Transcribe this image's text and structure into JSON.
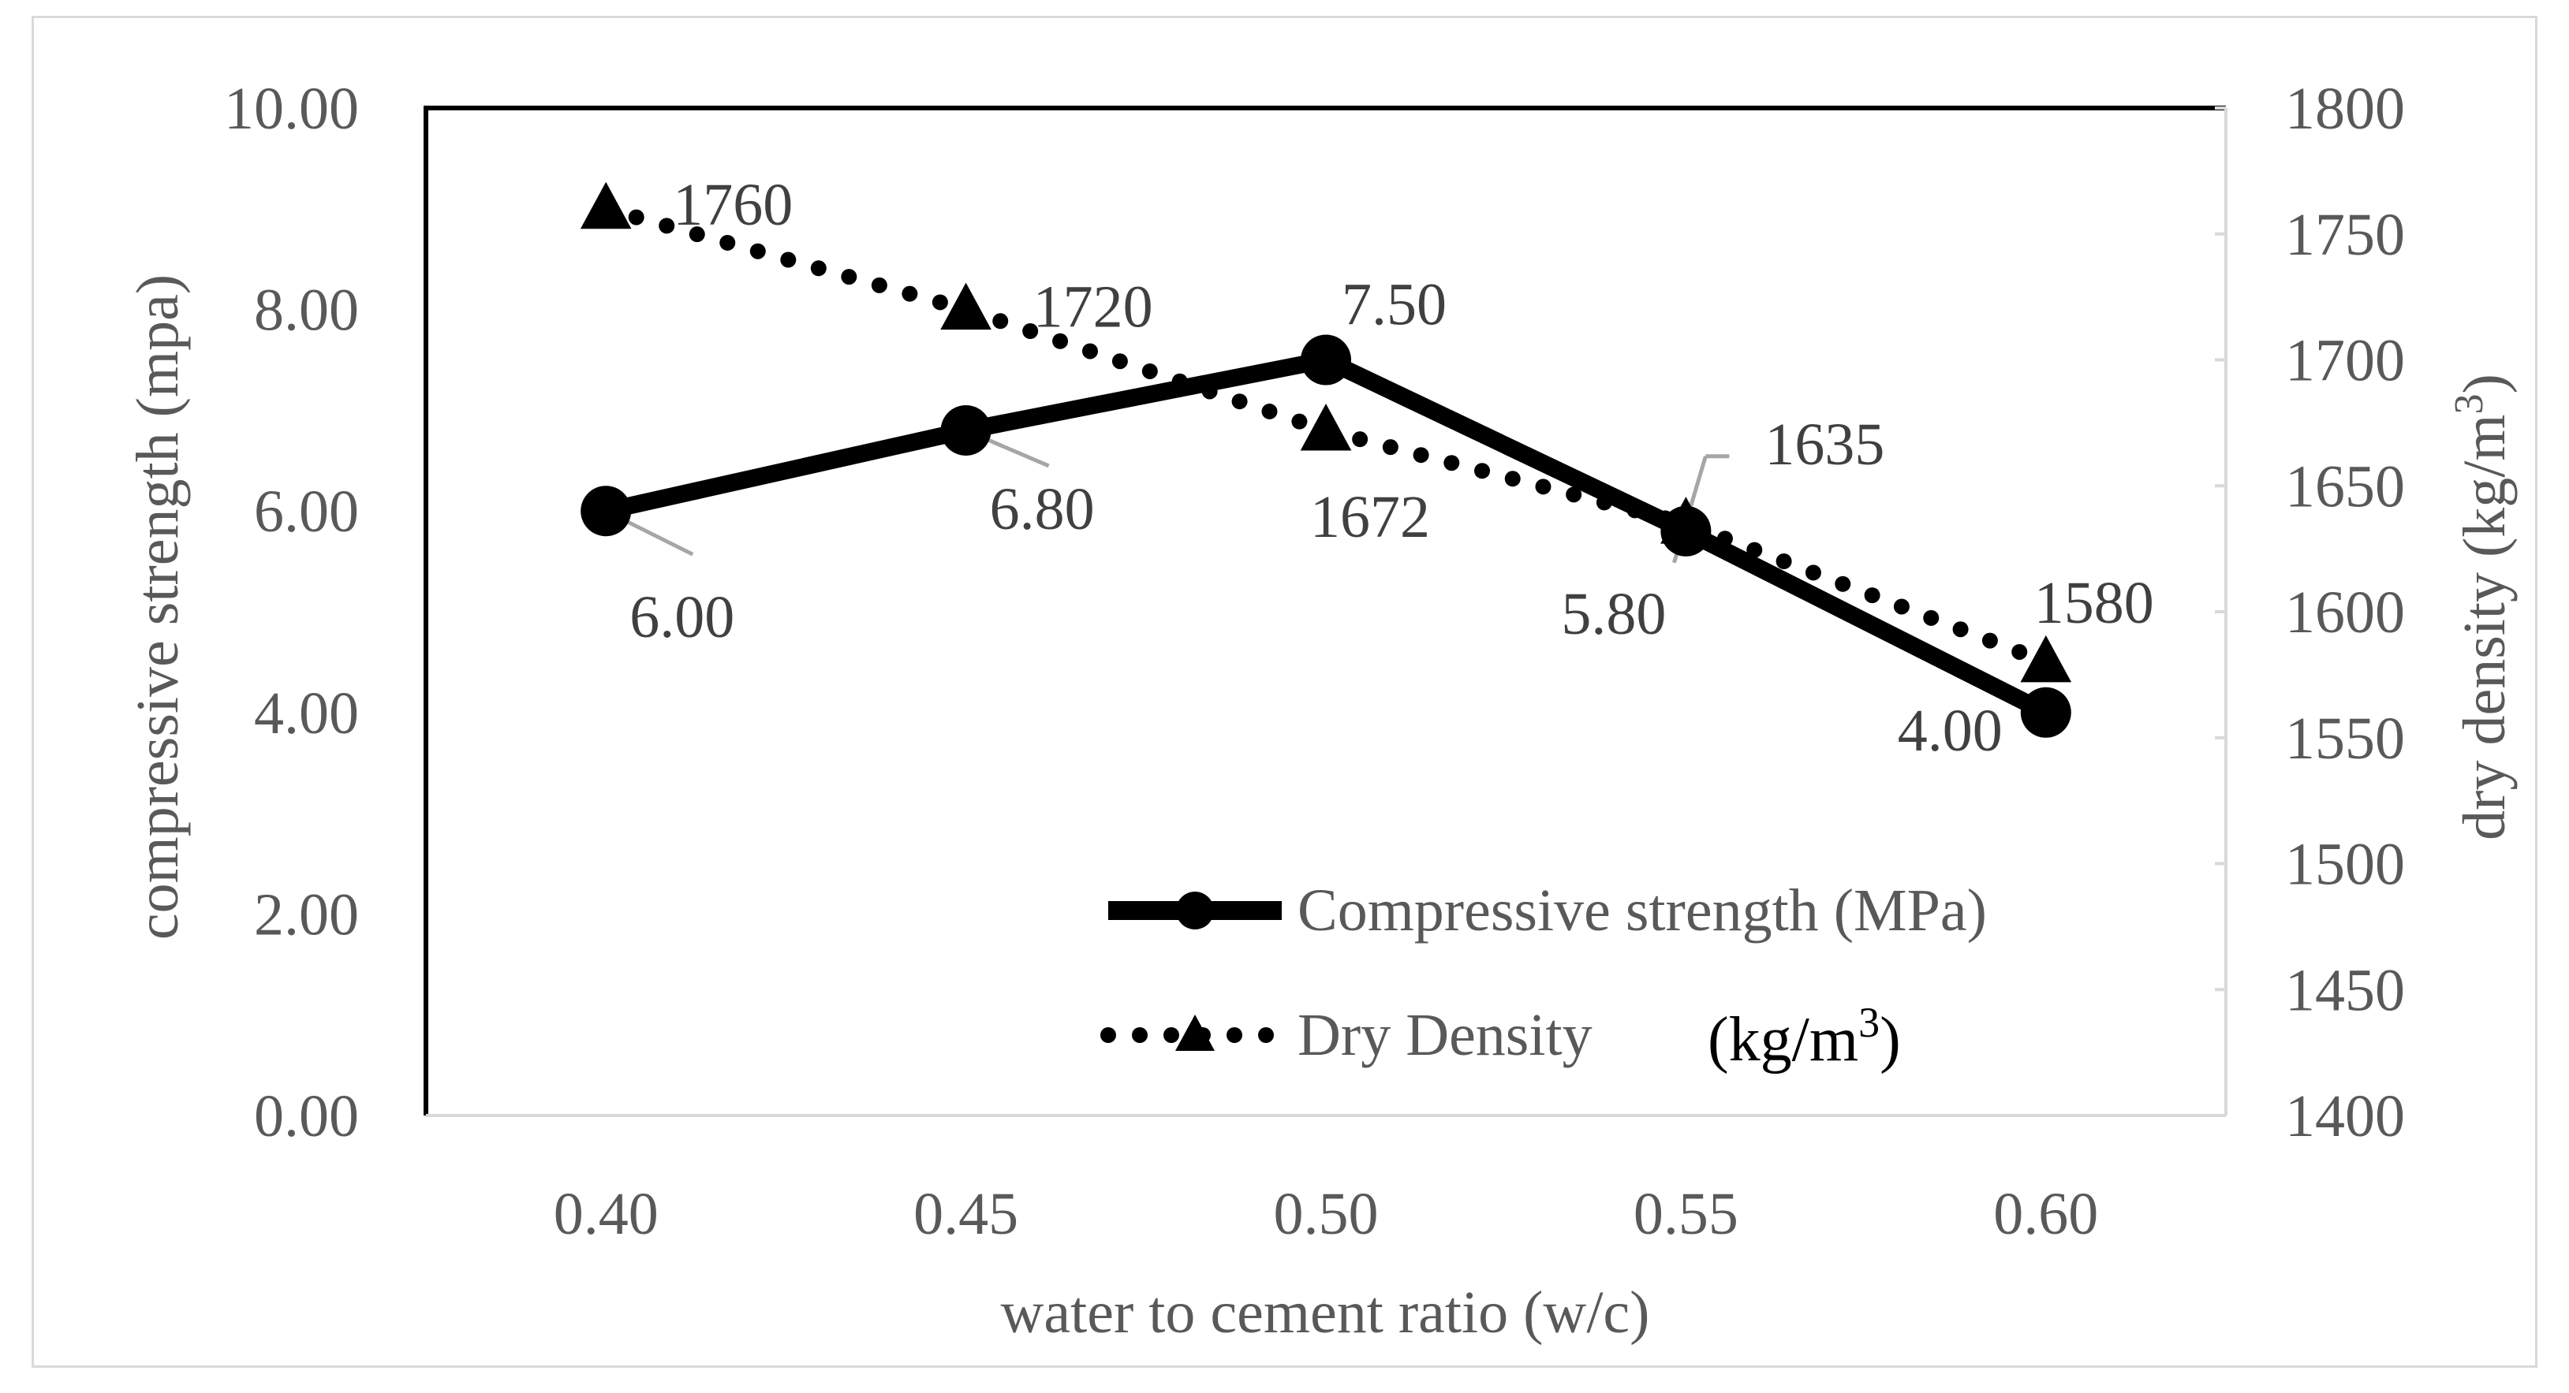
{
  "chart_data": {
    "type": "line",
    "title": "",
    "xlabel": "water to cement ratio (w/c)",
    "ylabel_left": "compressive strength (mpa)",
    "ylabel_right": "dry density (kg/m³)",
    "ylabel_right_main": "dry density (kg/m",
    "ylabel_right_sup": "3",
    "ylabel_right_end": ")",
    "categories": [
      "0.40",
      "0.45",
      "0.50",
      "0.55",
      "0.60"
    ],
    "y_left": {
      "min": 0,
      "max": 10,
      "step": 2,
      "ticks": [
        "0.00",
        "2.00",
        "4.00",
        "6.00",
        "8.00",
        "10.00"
      ]
    },
    "y_right": {
      "min": 1400,
      "max": 1800,
      "step": 50,
      "ticks": [
        "1400",
        "1450",
        "1500",
        "1550",
        "1600",
        "1650",
        "1700",
        "1750",
        "1800"
      ]
    },
    "series": [
      {
        "name": "Compressive strength (MPa)",
        "axis": "left",
        "style": "solid",
        "marker": "circle",
        "values": [
          6.0,
          6.8,
          7.5,
          5.8,
          4.0
        ],
        "labels": [
          "6.00",
          "6.80",
          "7.50",
          "5.80",
          "4.00"
        ]
      },
      {
        "name": "Dry Density",
        "axis": "right",
        "style": "dotted",
        "marker": "triangle",
        "values": [
          1760,
          1720,
          1672,
          1635,
          1580
        ],
        "labels": [
          "1760",
          "1720",
          "1672",
          "1635",
          "1580"
        ]
      }
    ],
    "legend": {
      "position": "bottom-right",
      "unit_main": "(kg/m",
      "unit_sup": "3",
      "unit_end": ")"
    },
    "colors": {
      "series": "#000000",
      "text": "#595959",
      "leader": "#a6a6a6",
      "frame": "#d9d9d9"
    }
  }
}
